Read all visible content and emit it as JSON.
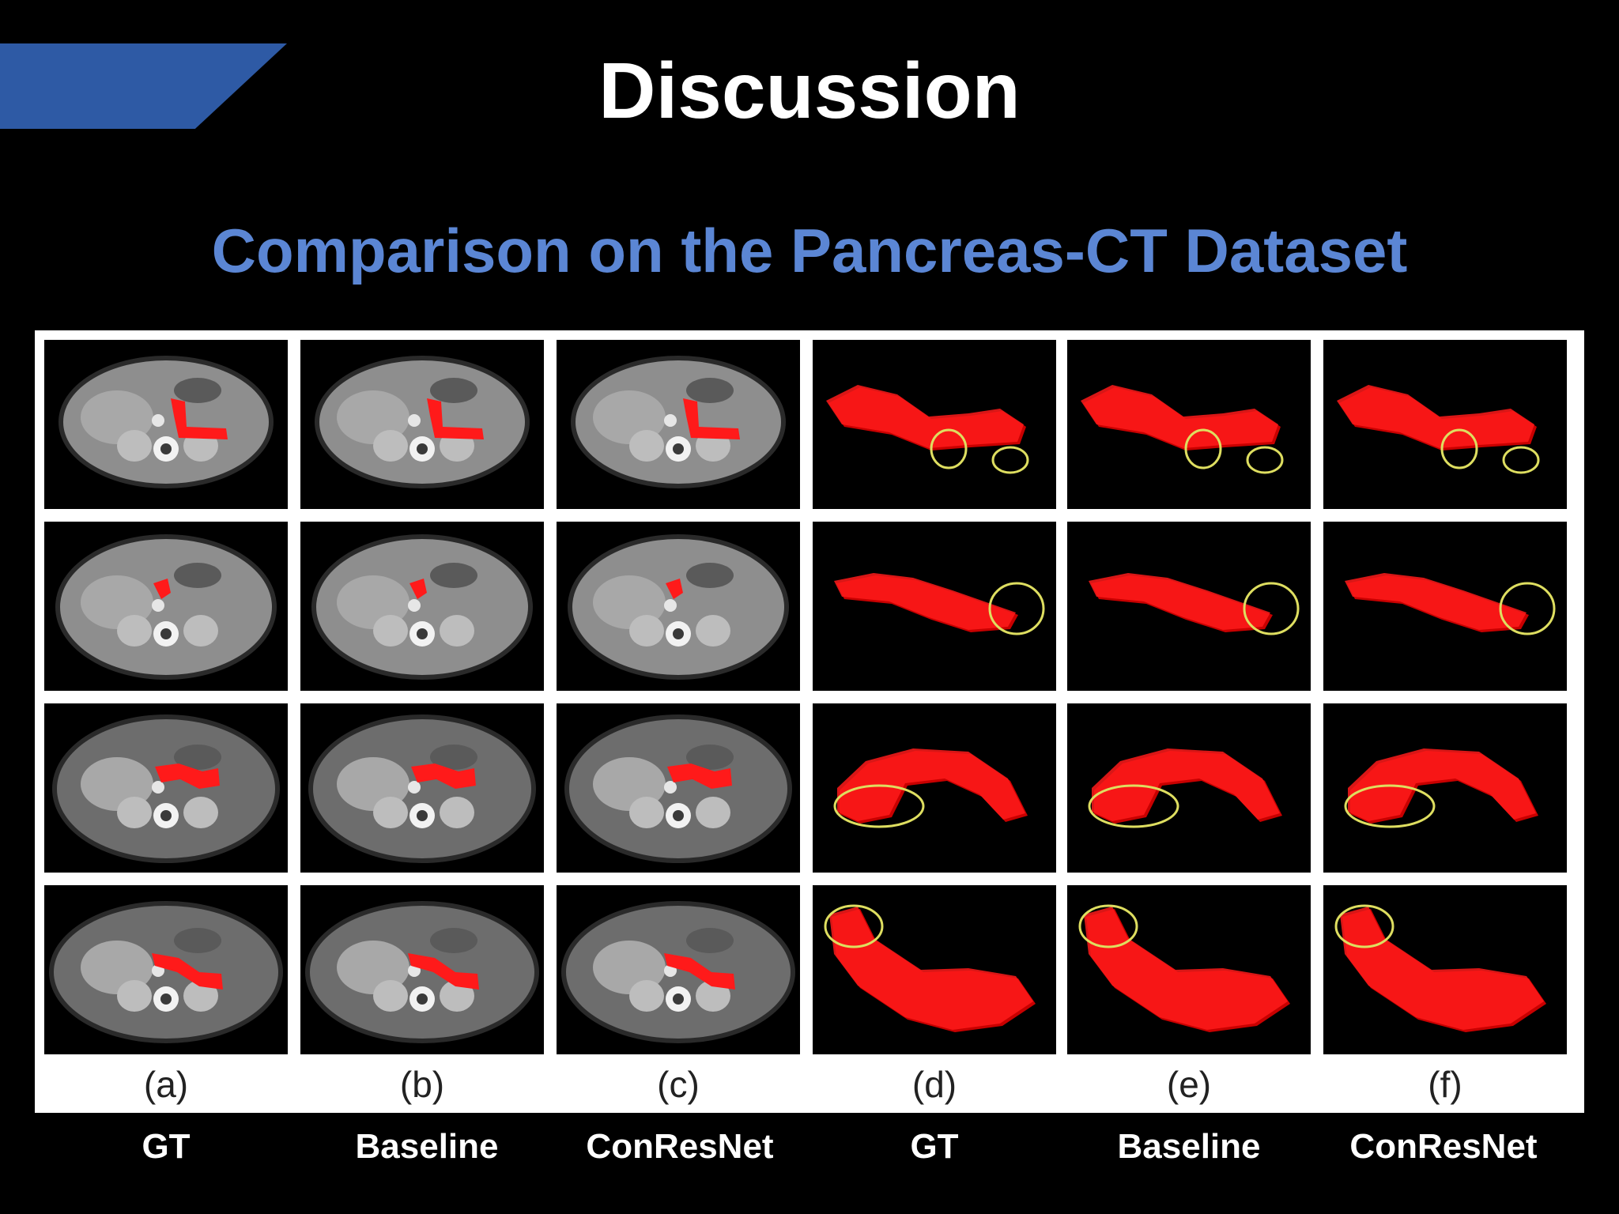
{
  "slide": {
    "title": "Discussion",
    "subtitle": "Comparison on the Pancreas-CT Dataset"
  },
  "colors": {
    "title_bar": "#2e5aa5",
    "subtitle": "#5b86d4",
    "segmentation": "#ff1a1a",
    "highlight_circle": "#dede60"
  },
  "figure": {
    "panel_labels": [
      "(a)",
      "(b)",
      "(c)",
      "(d)",
      "(e)",
      "(f)"
    ],
    "method_labels": [
      "GT",
      "Baseline",
      "ConResNet",
      "GT",
      "Baseline",
      "ConResNet"
    ],
    "rows": [
      {
        "ct_slices": [
          "ct-slice-gt",
          "ct-slice-baseline",
          "ct-slice-conresnet"
        ],
        "renderings_3d": [
          "3d-pancreas-gt",
          "3d-pancreas-baseline",
          "3d-pancreas-conresnet"
        ]
      },
      {
        "ct_slices": [
          "ct-slice-gt",
          "ct-slice-baseline",
          "ct-slice-conresnet"
        ],
        "renderings_3d": [
          "3d-pancreas-gt",
          "3d-pancreas-baseline",
          "3d-pancreas-conresnet"
        ]
      },
      {
        "ct_slices": [
          "ct-slice-gt",
          "ct-slice-baseline",
          "ct-slice-conresnet"
        ],
        "renderings_3d": [
          "3d-pancreas-gt",
          "3d-pancreas-baseline",
          "3d-pancreas-conresnet"
        ]
      },
      {
        "ct_slices": [
          "ct-slice-gt",
          "ct-slice-baseline",
          "ct-slice-conresnet"
        ],
        "renderings_3d": [
          "3d-pancreas-gt",
          "3d-pancreas-baseline",
          "3d-pancreas-conresnet"
        ]
      }
    ]
  }
}
